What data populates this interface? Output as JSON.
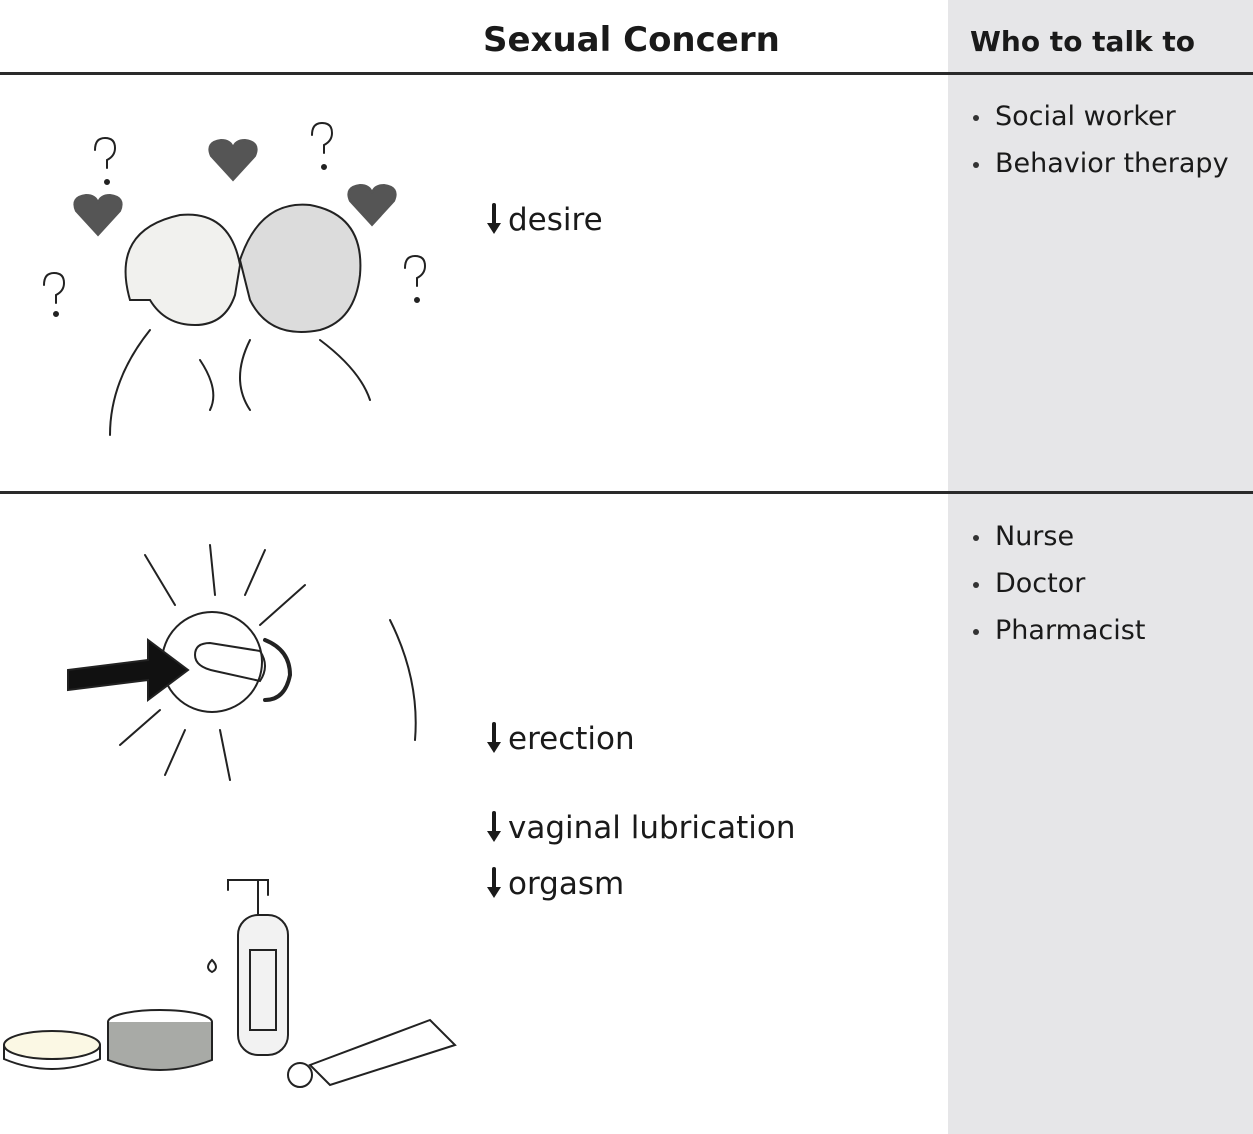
{
  "header": {
    "concern": "Sexual Concern",
    "contact": "Who to talk to"
  },
  "rows": [
    {
      "concerns": [
        "desire"
      ],
      "contacts": [
        "Social worker",
        "Behavior therapy"
      ]
    },
    {
      "concerns": [
        "erection",
        "vaginal lubrication",
        "orgasm"
      ],
      "contacts": [
        "Nurse",
        "Doctor",
        "Pharmacist"
      ]
    }
  ]
}
